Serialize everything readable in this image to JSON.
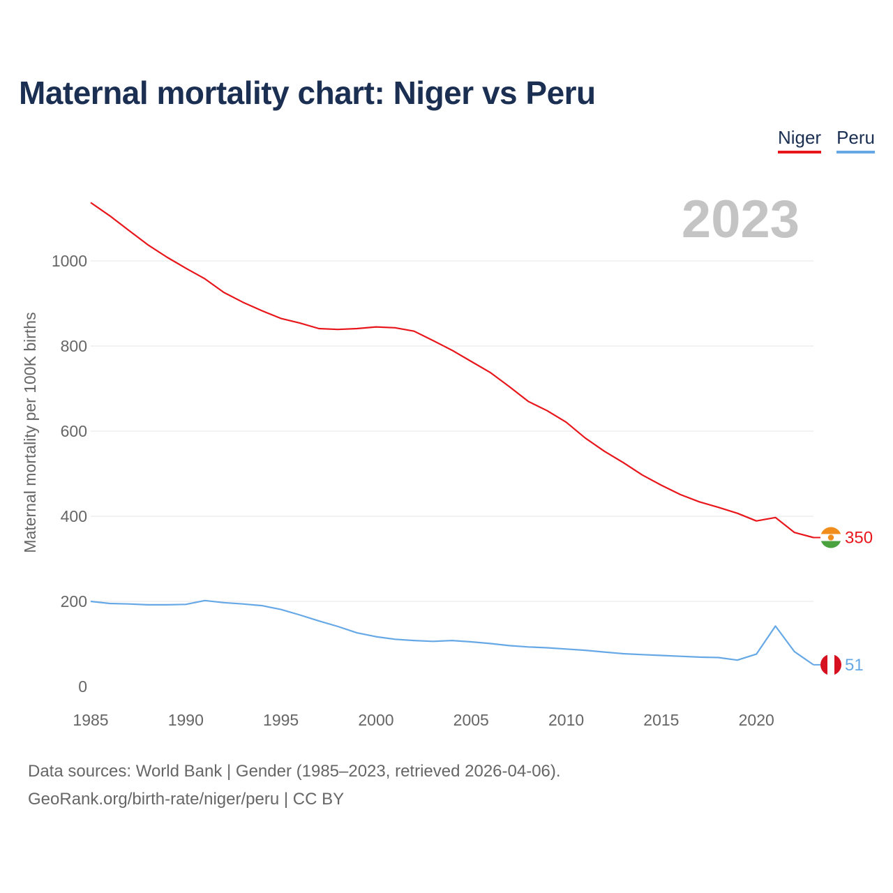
{
  "title": "Maternal mortality chart: Niger vs Peru",
  "legend": [
    {
      "label": "Niger",
      "color": "#e8161b"
    },
    {
      "label": "Peru",
      "color": "#66a8e6"
    }
  ],
  "footer": {
    "line1": "Data sources: World Bank | Gender (1985–2023, retrieved 2026-04-06).",
    "line2": "GeoRank.org/birth-rate/niger/peru | CC BY"
  },
  "chart_data": {
    "type": "line",
    "title": "Maternal mortality chart: Niger vs Peru",
    "year_label": "2023",
    "xlabel": "",
    "ylabel": "Maternal mortality per 100K births",
    "xlim": [
      1985,
      2023
    ],
    "ylim": [
      0,
      1100
    ],
    "yticks": [
      0,
      200,
      400,
      600,
      800,
      1000
    ],
    "xticks": [
      1985,
      1990,
      1995,
      2000,
      2005,
      2010,
      2015,
      2020
    ],
    "grid": true,
    "x": [
      1985,
      1986,
      1987,
      1988,
      1989,
      1990,
      1991,
      1992,
      1993,
      1994,
      1995,
      1996,
      1997,
      1998,
      1999,
      2000,
      2001,
      2002,
      2003,
      2004,
      2005,
      2006,
      2007,
      2008,
      2009,
      2010,
      2011,
      2012,
      2013,
      2014,
      2015,
      2016,
      2017,
      2018,
      2019,
      2020,
      2021,
      2022,
      2023
    ],
    "series": [
      {
        "name": "Niger",
        "color": "#e8161b",
        "end_label": "350",
        "values": [
          1137,
          1106,
          1072,
          1038,
          1009,
          983,
          958,
          926,
          903,
          883,
          865,
          854,
          841,
          839,
          841,
          845,
          843,
          835,
          813,
          790,
          764,
          738,
          705,
          670,
          648,
          621,
          584,
          553,
          526,
          497,
          473,
          451,
          434,
          421,
          407,
          389,
          397,
          362,
          350
        ]
      },
      {
        "name": "Peru",
        "color": "#66a8e6",
        "end_label": "51",
        "values": [
          200,
          195,
          194,
          192,
          192,
          193,
          202,
          197,
          194,
          190,
          181,
          168,
          154,
          141,
          126,
          117,
          111,
          108,
          106,
          108,
          105,
          101,
          96,
          93,
          91,
          88,
          85,
          81,
          77,
          75,
          73,
          71,
          69,
          68,
          62,
          76,
          142,
          82,
          51
        ]
      }
    ]
  }
}
